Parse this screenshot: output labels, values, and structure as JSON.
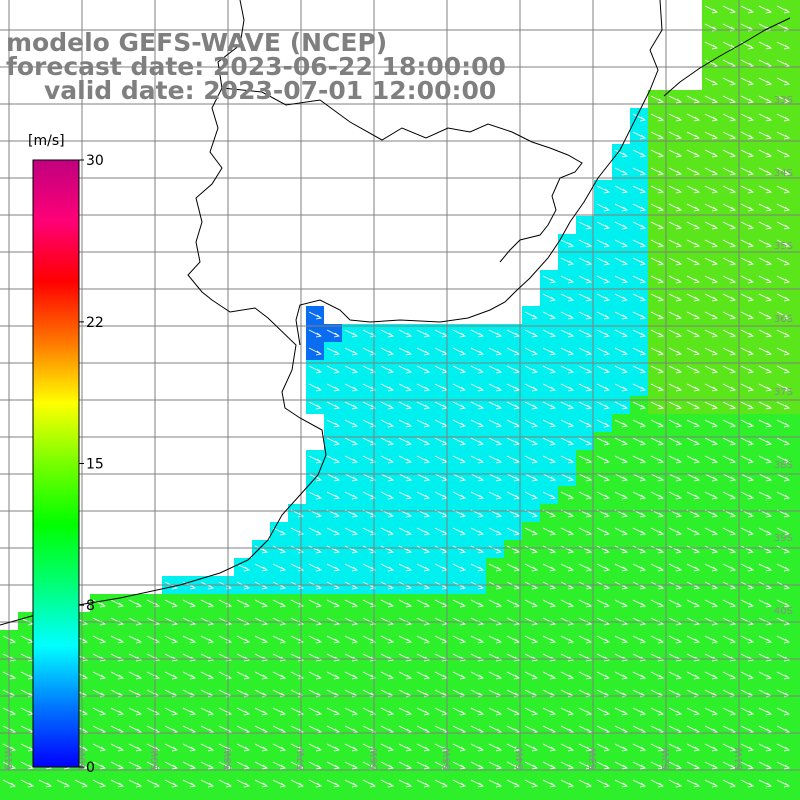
{
  "title": {
    "line1": "modelo GEFS-WAVE (NCEP)",
    "line2": "forecast date: 2023-06-22 18:00:00",
    "line3": "valid date: 2023-07-01 12:00:00"
  },
  "colorbar": {
    "unit": "[m/s]",
    "ticks": [
      "30",
      "22",
      "15",
      "8",
      "0"
    ],
    "tick_values": [
      30,
      22,
      15,
      8,
      0
    ],
    "colors": [
      "#0000ff",
      "#0077ff",
      "#00ffff",
      "#00ff77",
      "#00ff00",
      "#77ff00",
      "#ffff00",
      "#ff7700",
      "#ff0000",
      "#ff0077",
      "#c0007f"
    ]
  },
  "map": {
    "lon_labels": [
      "61W",
      "60W",
      "59W",
      "58W",
      "57W",
      "56W",
      "55W",
      "54W",
      "53W",
      "52W",
      "51W"
    ],
    "lat_labels": [
      "33S",
      "34S",
      "35S",
      "36S",
      "37S",
      "38S",
      "39S",
      "40S"
    ],
    "field_colors": {
      "low": "#0a6cf0",
      "mid": "#00f0f0",
      "high": "#2ef02a",
      "peak": "#5ae61a"
    },
    "arrow_direction": "southeast",
    "coastline_color": "#000000",
    "grid_color": "#808080"
  }
}
